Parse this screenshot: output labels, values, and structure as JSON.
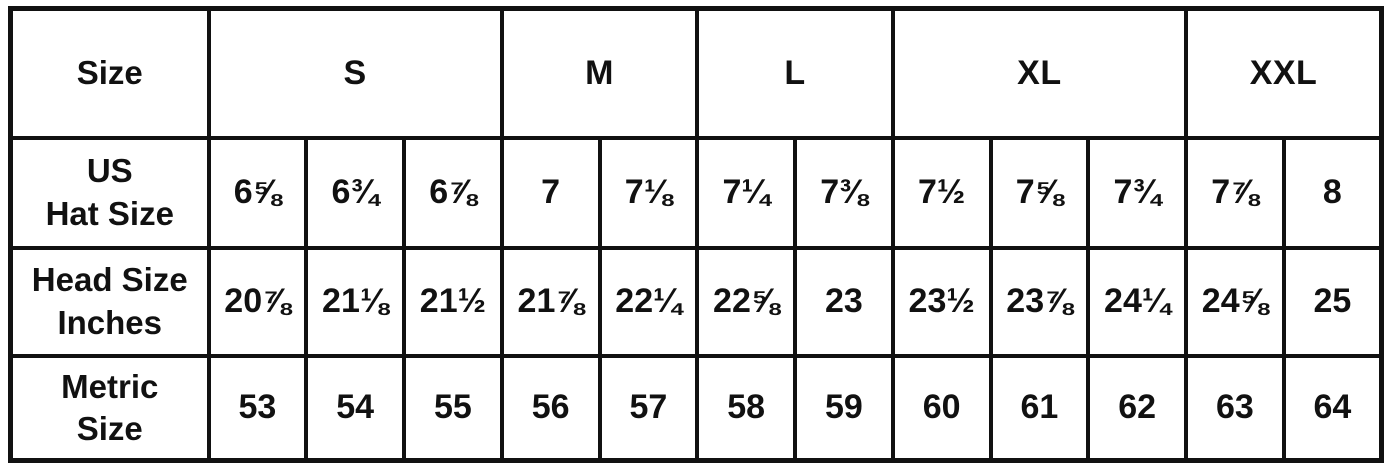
{
  "colors": {
    "border": "#111111",
    "background": "#ffffff",
    "text": "#111111"
  },
  "chart_data": {
    "type": "table",
    "corner_header": "Size",
    "size_groups": [
      {
        "label": "S",
        "span": 3
      },
      {
        "label": "M",
        "span": 2
      },
      {
        "label": "L",
        "span": 2
      },
      {
        "label": "XL",
        "span": 3
      },
      {
        "label": "XXL",
        "span": 2
      }
    ],
    "rows": [
      {
        "label": "US\nHat Size",
        "values": [
          "6⅝",
          "6¾",
          "6⅞",
          "7",
          "7⅛",
          "7¼",
          "7⅜",
          "7½",
          "7⅝",
          "7¾",
          "7⅞",
          "8"
        ]
      },
      {
        "label": "Head Size\nInches",
        "values": [
          "20⅞",
          "21⅛",
          "21½",
          "21⅞",
          "22¼",
          "22⅝",
          "23",
          "23½",
          "23⅞",
          "24¼",
          "24⅝",
          "25"
        ]
      },
      {
        "label": "Metric\nSize",
        "values": [
          "53",
          "54",
          "55",
          "56",
          "57",
          "58",
          "59",
          "60",
          "61",
          "62",
          "63",
          "64"
        ]
      }
    ]
  }
}
